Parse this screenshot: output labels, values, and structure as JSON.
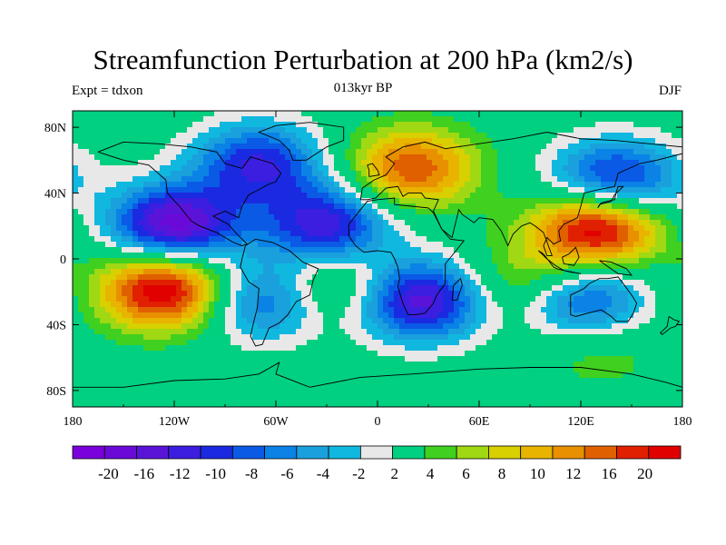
{
  "chart_data": {
    "type": "heatmap",
    "title": "Streamfunction Perturbation at 200 hPa (km2/s)",
    "subtitle": "013kyr BP",
    "left_label": "Expt = tdxon",
    "right_label": "DJF",
    "x_ticks": [
      "180",
      "120W",
      "60W",
      "0",
      "60E",
      "120E",
      "180"
    ],
    "y_ticks": [
      "80N",
      "40N",
      "0",
      "40S",
      "80S"
    ],
    "xlim": [
      -180,
      180
    ],
    "ylim": [
      -90,
      90
    ],
    "levels": [
      -22,
      -20,
      -18,
      -16,
      -14,
      -12,
      -10,
      -8,
      -6,
      -4,
      -2,
      2,
      4,
      6,
      8,
      10,
      12,
      14,
      16,
      18,
      20,
      22
    ],
    "colorbar_labels": [
      "-20",
      "-16",
      "-12",
      "-10",
      "-8",
      "-6",
      "-4",
      "-2",
      "2",
      "4",
      "6",
      "8",
      "10",
      "12",
      "16",
      "20"
    ],
    "colors": [
      "#7a00dc",
      "#6a0ad8",
      "#5a14d8",
      "#3c1ee0",
      "#1a2ae0",
      "#0a5ae6",
      "#0a82e6",
      "#1aa0dc",
      "#10b8e0",
      "#e8e8e8",
      "#00d080",
      "#40d020",
      "#a0d814",
      "#d8d000",
      "#e8b400",
      "#e89000",
      "#e06000",
      "#e02000",
      "#e00000"
    ],
    "features": [
      {
        "lon": -120,
        "lat": 20,
        "value": -20
      },
      {
        "lon": -70,
        "lat": 58,
        "value": -14
      },
      {
        "lon": -30,
        "lat": 20,
        "value": -16
      },
      {
        "lon": 25,
        "lat": -25,
        "value": -18
      },
      {
        "lon": 120,
        "lat": -25,
        "value": -14
      },
      {
        "lon": 140,
        "lat": 47,
        "value": -16
      },
      {
        "lon": -68,
        "lat": -25,
        "value": -12
      },
      {
        "lon": -125,
        "lat": -18,
        "value": 20
      },
      {
        "lon": 130,
        "lat": 20,
        "value": 20
      },
      {
        "lon": 20,
        "lat": 55,
        "value": 14
      },
      {
        "lon": -25,
        "lat": -15,
        "value": 8
      },
      {
        "lon": 90,
        "lat": -15,
        "value": 8
      },
      {
        "lon": 130,
        "lat": -55,
        "value": 4
      }
    ]
  }
}
